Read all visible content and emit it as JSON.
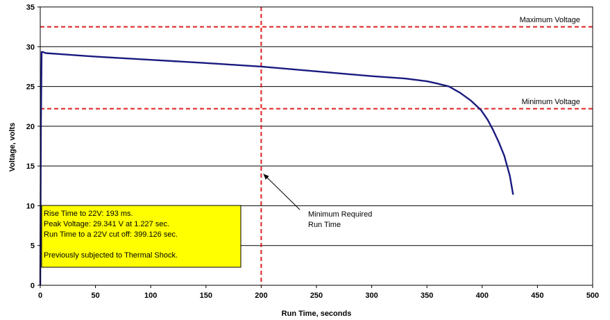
{
  "chart_data": {
    "type": "line",
    "title": "",
    "xlabel": "Run Time, seconds",
    "ylabel": "Voltage, volts",
    "xlim": [
      0,
      500
    ],
    "ylim": [
      0,
      35
    ],
    "x_ticks": [
      "0",
      "50",
      "100",
      "150",
      "200",
      "250",
      "300",
      "350",
      "400",
      "450",
      "500"
    ],
    "y_ticks": [
      "0",
      "5",
      "10",
      "15",
      "20",
      "25",
      "30",
      "35"
    ],
    "grid": "horizontal",
    "line_color": "#1a1a80",
    "reference_color": "#e02020",
    "series": [
      {
        "x": [
          0,
          0.6,
          1.227,
          2,
          5,
          20,
          50,
          100,
          150,
          200,
          250,
          300,
          330,
          350,
          360,
          370,
          380,
          390,
          399.126,
          405,
          410,
          415,
          420,
          425,
          428
        ],
        "y": [
          0,
          20,
          29.341,
          29.35,
          29.2,
          29.05,
          28.75,
          28.35,
          27.95,
          27.5,
          26.9,
          26.3,
          26.0,
          25.65,
          25.35,
          25.0,
          24.2,
          23.2,
          22.0,
          20.8,
          19.5,
          18.0,
          16.3,
          13.8,
          11.4
        ]
      }
    ],
    "reference_lines": [
      {
        "orientation": "horizontal",
        "value": 32.5,
        "label": "Maximum Voltage"
      },
      {
        "orientation": "horizontal",
        "value": 22.2,
        "label": "Minimum Voltage"
      },
      {
        "orientation": "vertical",
        "value": 200,
        "label": ""
      }
    ],
    "annotations": [
      {
        "lines": [
          "Minimum Required",
          "Run Time"
        ],
        "arrow_to": [
          202,
          14
        ],
        "text_at": [
          235,
          9.5
        ]
      }
    ],
    "info_box": {
      "lines": [
        "Rise Time to 22V: 193 ms.",
        "Peak Voltage: 29.341 V at 1.227 sec.",
        "Run Time to a 22V cut off: 399.126 sec.",
        "",
        "Previously subjected to Thermal Shock."
      ],
      "background": "#ffff00"
    }
  }
}
